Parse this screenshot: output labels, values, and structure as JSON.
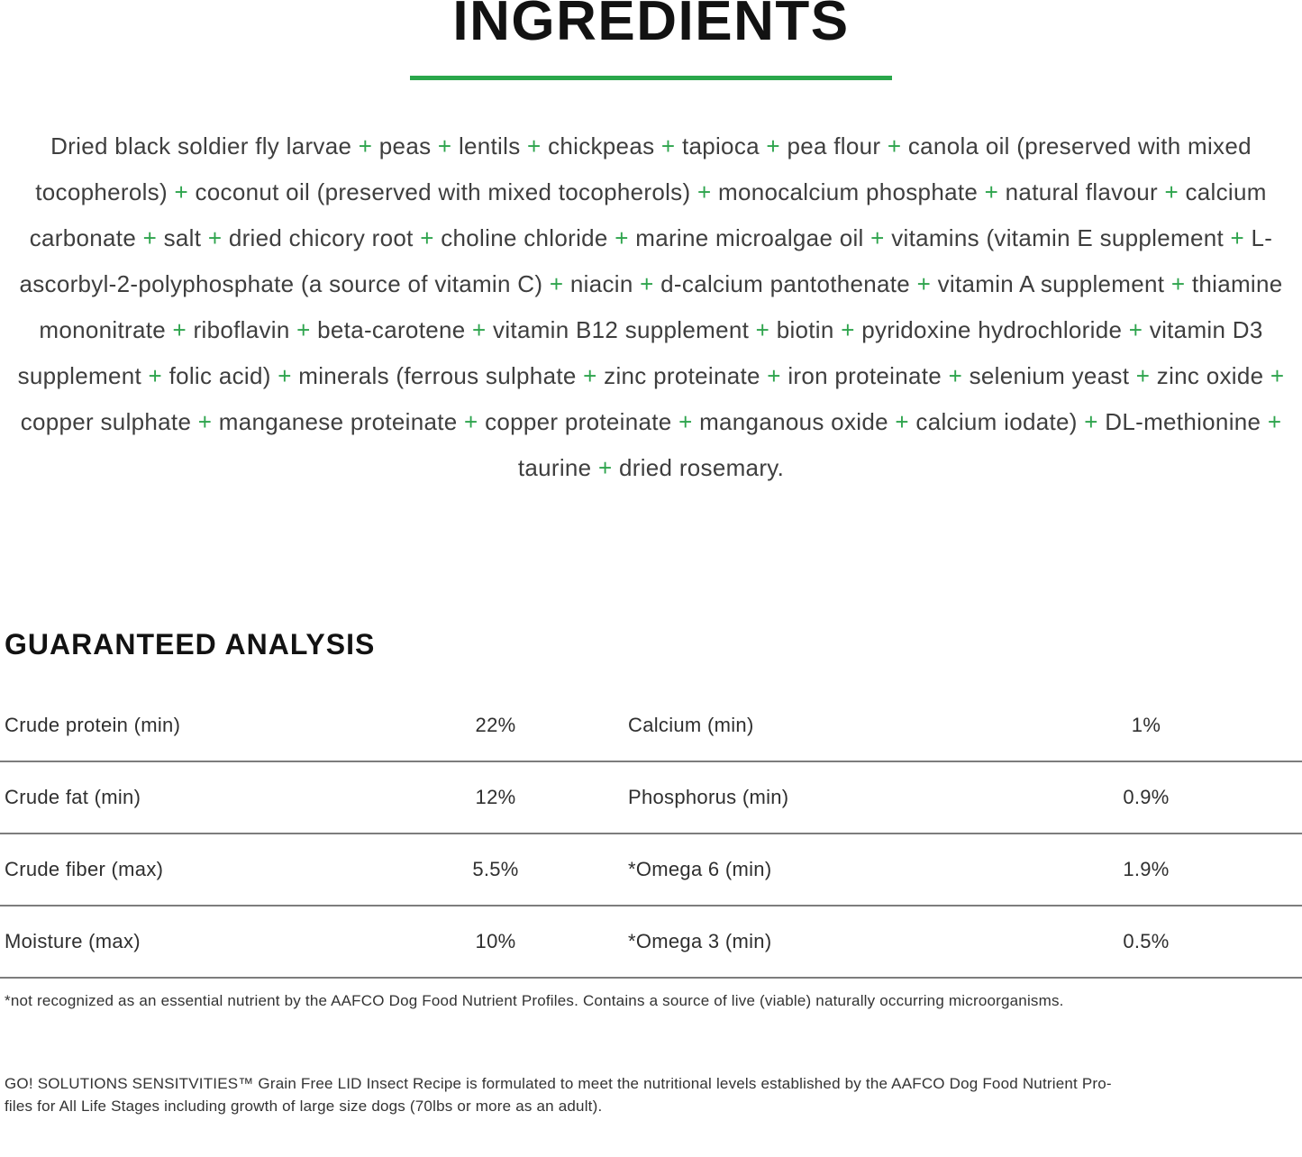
{
  "page": {
    "title": "INGREDIENTS",
    "accent_green": "#2aa74b",
    "divider_gray": "#7d7d7d"
  },
  "ingredients": {
    "separator": "+",
    "items": [
      "Dried black soldier fly larvae",
      "peas",
      "lentils",
      "chickpeas",
      "tapioca",
      "pea flour",
      "canola oil (preserved with mixed tocopherols)",
      "coconut oil (preserved with mixed tocopherols)",
      "monocalcium phosphate",
      "natural flavour",
      "calcium carbonate",
      "salt",
      "dried chicory root",
      "choline chloride",
      "marine microalgae oil",
      "vitamins (vitamin E supplement",
      "L-ascorbyl-2-polyphosphate (a source of vitamin C)",
      "niacin",
      "d-calcium pantothenate",
      "vitamin A supplement",
      "thiamine mononitrate",
      "riboflavin",
      "beta-carotene",
      "vitamin B12 supplement",
      "biotin",
      "pyridoxine hydrochloride",
      "vitamin D3 supplement",
      "folic acid)",
      "minerals (ferrous sulphate",
      "zinc proteinate",
      "iron proteinate",
      "selenium yeast",
      "zinc oxide",
      "copper sulphate",
      "manganese proteinate",
      "copper proteinate",
      "manganous oxide",
      "calcium iodate)",
      "DL-methionine",
      "taurine",
      "dried rosemary."
    ]
  },
  "analysis": {
    "heading": "GUARANTEED ANALYSIS",
    "rows": [
      {
        "label1": "Crude protein (min)",
        "value1": "22%",
        "label2": "Calcium (min)",
        "value2": "1%"
      },
      {
        "label1": "Crude fat (min)",
        "value1": "12%",
        "label2": "Phosphorus (min)",
        "value2": "0.9%"
      },
      {
        "label1": "Crude fiber (max)",
        "value1": "5.5%",
        "label2": "*Omega 6 (min)",
        "value2": "1.9%"
      },
      {
        "label1": "Moisture (max)",
        "value1": "10%",
        "label2": "*Omega 3 (min)",
        "value2": "0.5%"
      }
    ]
  },
  "footnotes": {
    "note1": "*not recognized as an essential nutrient by the AAFCO Dog Food Nutrient Profiles. Contains a source of live (viable) naturally occurring microorganisms.",
    "note2_lines": [
      "GO! SOLUTIONS SENSITVITIES™ Grain Free LID Insect Recipe is formulated to meet the nutritional levels established by the AAFCO Dog Food Nutrient Pro-",
      "files for All Life Stages including growth of large size dogs (70lbs or more as an adult)."
    ]
  }
}
